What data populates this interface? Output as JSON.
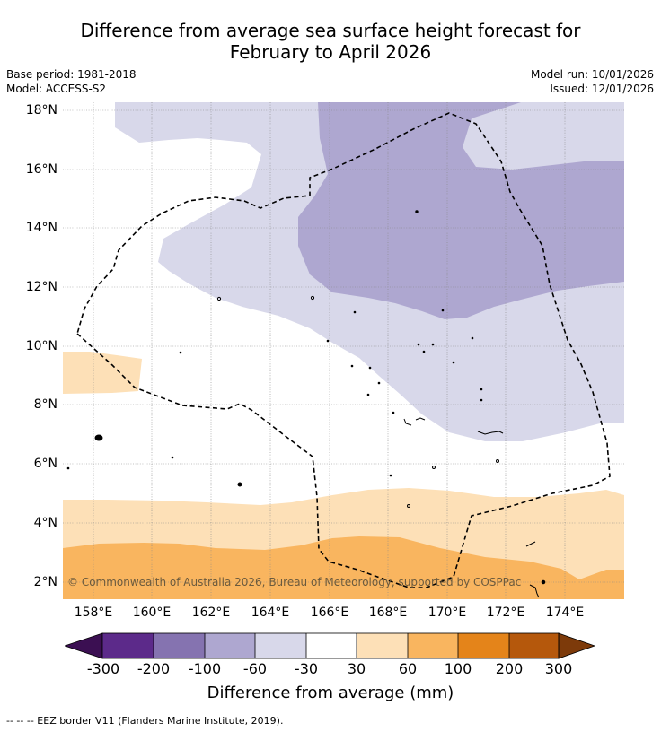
{
  "title": {
    "line1": "Difference from average sea surface height forecast for",
    "line2": "February to April 2026"
  },
  "meta": {
    "base_period": "Base period: 1981-2018",
    "model": "Model: ACCESS-S2",
    "model_run": "Model run: 10/01/2026",
    "issued": "Issued: 12/01/2026"
  },
  "map": {
    "lat_labels": [
      "18°N",
      "16°N",
      "14°N",
      "12°N",
      "10°N",
      "8°N",
      "6°N",
      "4°N",
      "2°N"
    ],
    "lon_labels": [
      "158°E",
      "160°E",
      "162°E",
      "164°E",
      "166°E",
      "168°E",
      "170°E",
      "172°E",
      "174°E"
    ],
    "copyright": "© Commonwealth of Australia 2026, Bureau of Meteorology, supported by COSPPac",
    "colors": {
      "neg300": "#3b0f52",
      "neg200": "#5c2a8a",
      "neg100": "#8573b0",
      "neg60": "#aea7d0",
      "neg30": "#d8d8ea",
      "zero": "#ffffff",
      "pos30": "#fde0b7",
      "pos60": "#f9b55f",
      "pos100": "#e4841a",
      "pos200": "#b5580c",
      "pos300": "#7d3a0a"
    }
  },
  "colorbar": {
    "ticks": [
      "-300",
      "-200",
      "-100",
      "-60",
      "-30",
      "30",
      "60",
      "100",
      "200",
      "300"
    ],
    "label": "Difference from average (mm)"
  },
  "footnote": "--  --  -- EEZ border V11 (Flanders Marine Institute, 2019)."
}
